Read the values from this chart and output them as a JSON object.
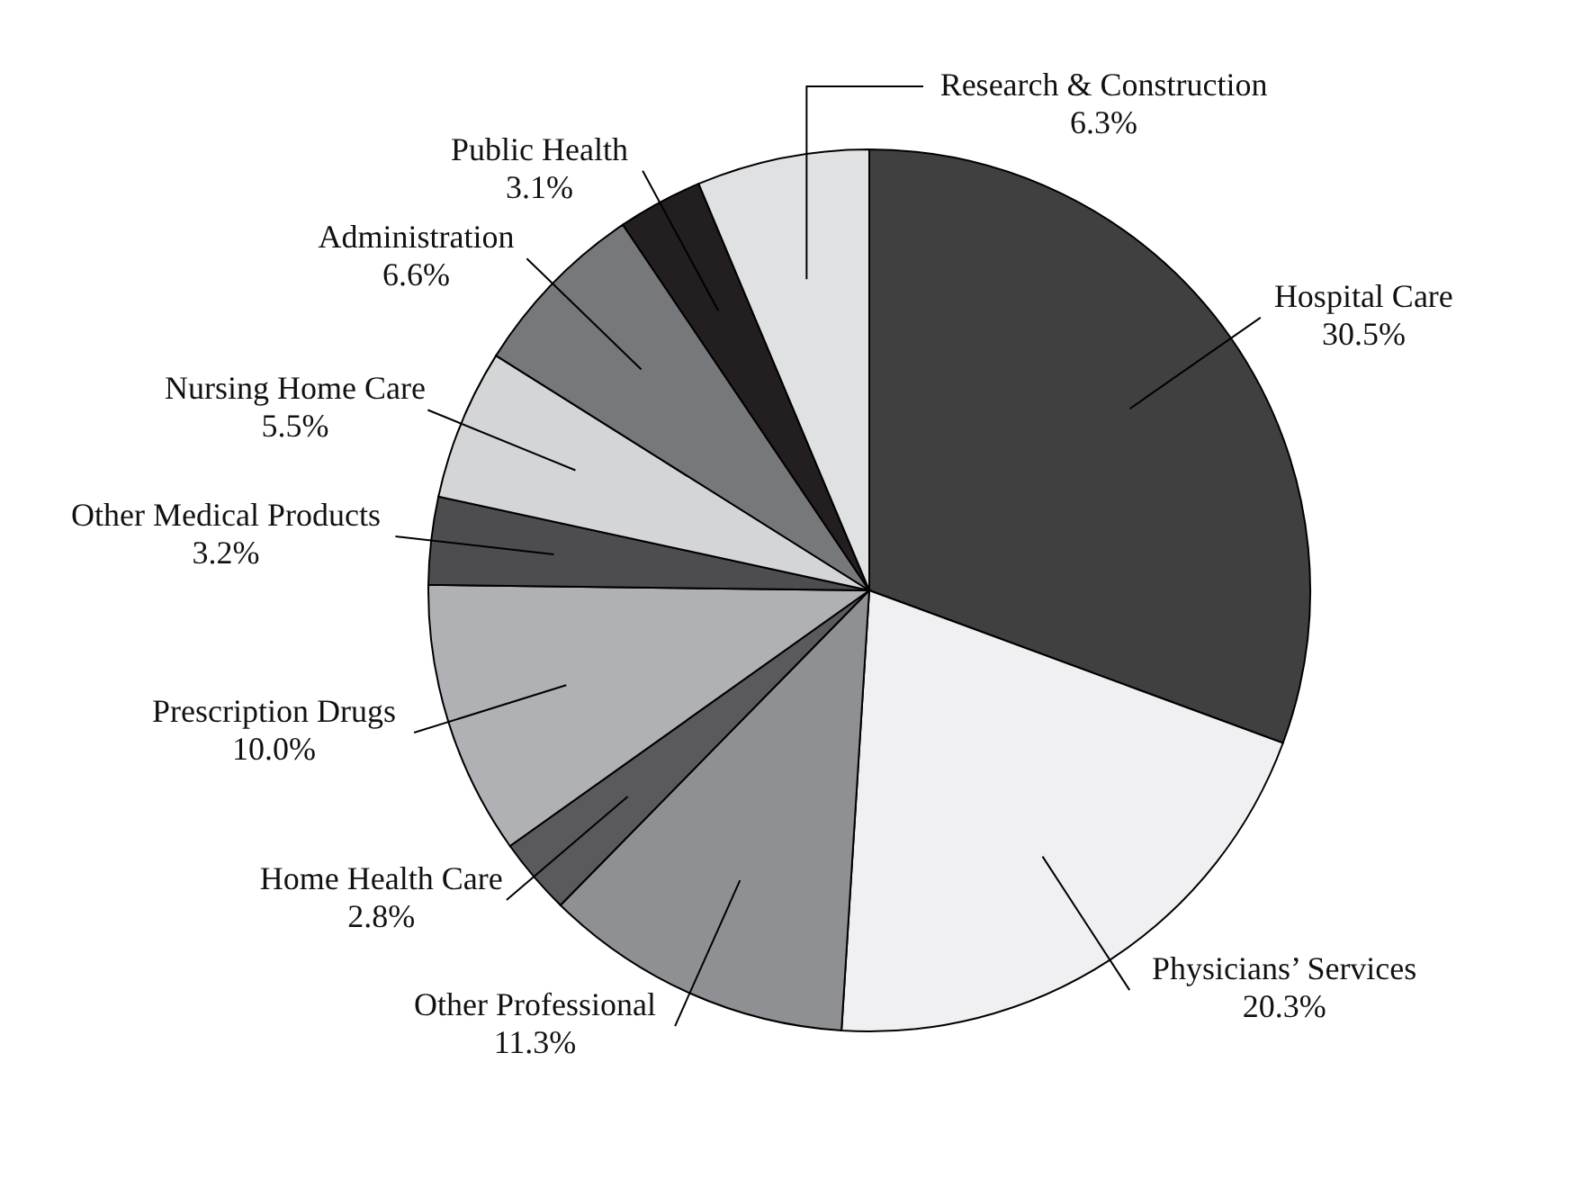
{
  "chart_data": {
    "type": "pie",
    "categories": [
      "Hospital Care",
      "Physicians’ Services",
      "Other Professional",
      "Home Health Care",
      "Prescription Drugs",
      "Other Medical Products",
      "Nursing Home Care",
      "Administration",
      "Public Health",
      "Research & Construction"
    ],
    "values": [
      30.5,
      20.3,
      11.3,
      2.8,
      10.0,
      3.2,
      5.5,
      6.6,
      3.1,
      6.3
    ],
    "value_labels": [
      "30.5%",
      "20.3%",
      "11.3%",
      "2.8%",
      "10.0%",
      "3.2%",
      "5.5%",
      "6.6%",
      "3.1%",
      "6.3%"
    ],
    "colors": [
      "#404040",
      "#f0f0f2",
      "#8f9094",
      "#5a5a5e",
      "#b0b1b4",
      "#4d4d50",
      "#d4d5d7",
      "#77787c",
      "#231f20",
      "#e0e1e3"
    ]
  }
}
